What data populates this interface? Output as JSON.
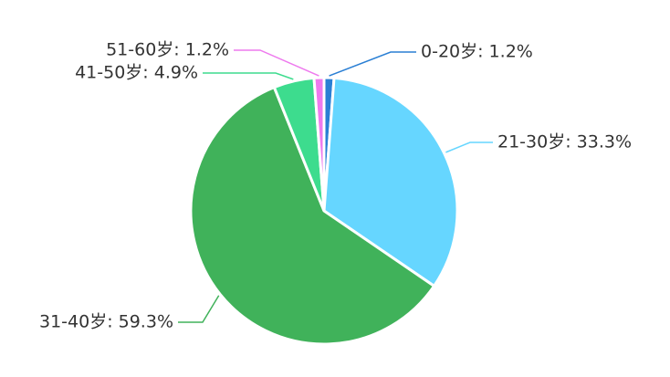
{
  "chart_data": {
    "type": "pie",
    "values": [
      1.2,
      33.3,
      59.3,
      4.9,
      1.2
    ],
    "value_labels": [
      "0-20岁: 1.2%",
      "21-30岁: 33.3%",
      "31-40岁: 59.3%",
      "41-50岁: 4.9%",
      "51-60岁: 1.2%"
    ],
    "colors": [
      "#2a7fd4",
      "#66d6ff",
      "#40b25a",
      "#3ddc8e",
      "#ee7aee"
    ]
  }
}
